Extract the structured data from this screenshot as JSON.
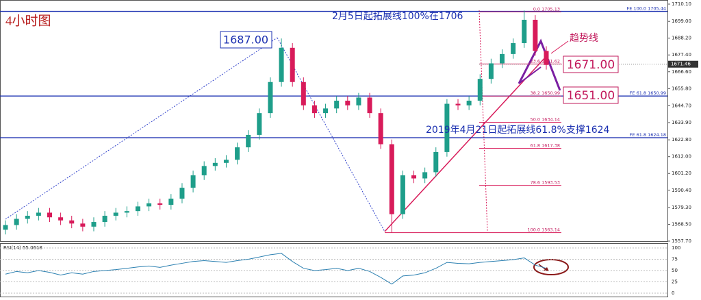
{
  "chart_data": {
    "type": "candlestick",
    "title": "4小时图",
    "annotations": [
      "2月5日起拓展线100%在1706",
      "2019年4月21日起拓展线61.8%支撑1624",
      "1687.00",
      "1671.00",
      "1651.00",
      "趋势线"
    ],
    "current_price": {
      "value": 1671.46,
      "label": "1671.46"
    },
    "up_color": "#1e9e8a",
    "down_color": "#d81b5a",
    "open": [
      1565,
      1568,
      1572,
      1574,
      1576,
      1573,
      1571,
      1569,
      1567,
      1570,
      1574,
      1576,
      1577,
      1580,
      1582,
      1581,
      1585,
      1592,
      1600,
      1606,
      1608,
      1610,
      1618,
      1626,
      1640,
      1660,
      1682,
      1660,
      1645,
      1640,
      1643,
      1648,
      1645,
      1650,
      1640,
      1620,
      1575,
      1600,
      1598,
      1602,
      1615,
      1646,
      1645,
      1648,
      1662,
      1672,
      1678,
      1685,
      1700,
      1680
    ],
    "high": [
      1571,
      1575,
      1577,
      1579,
      1579,
      1576,
      1574,
      1572,
      1573,
      1577,
      1579,
      1580,
      1583,
      1585,
      1585,
      1588,
      1595,
      1603,
      1609,
      1611,
      1613,
      1621,
      1629,
      1643,
      1663,
      1688,
      1685,
      1663,
      1648,
      1646,
      1651,
      1651,
      1653,
      1653,
      1643,
      1623,
      1603,
      1603,
      1605,
      1618,
      1649,
      1649,
      1651,
      1665,
      1675,
      1681,
      1688,
      1706,
      1703,
      1683
    ],
    "low": [
      1562,
      1565,
      1569,
      1571,
      1570,
      1568,
      1566,
      1564,
      1564,
      1567,
      1571,
      1573,
      1574,
      1577,
      1578,
      1578,
      1582,
      1589,
      1597,
      1603,
      1605,
      1607,
      1615,
      1623,
      1637,
      1657,
      1657,
      1642,
      1637,
      1637,
      1640,
      1642,
      1642,
      1637,
      1617,
      1563,
      1572,
      1595,
      1595,
      1599,
      1612,
      1642,
      1642,
      1645,
      1659,
      1669,
      1675,
      1682,
      1677,
      1668
    ],
    "close": [
      1568,
      1572,
      1574,
      1576,
      1573,
      1571,
      1569,
      1567,
      1570,
      1574,
      1576,
      1577,
      1580,
      1582,
      1581,
      1585,
      1592,
      1600,
      1606,
      1608,
      1610,
      1618,
      1626,
      1640,
      1660,
      1682,
      1660,
      1645,
      1640,
      1643,
      1648,
      1645,
      1650,
      1640,
      1620,
      1575,
      1600,
      1598,
      1602,
      1615,
      1646,
      1645,
      1648,
      1662,
      1672,
      1678,
      1685,
      1700,
      1680,
      1671
    ],
    "ylim": [
      1557.7,
      1710.1
    ],
    "yticks": [
      {
        "value": 1710.1,
        "label": "1710.10"
      },
      {
        "value": 1699,
        "label": "1699.00"
      },
      {
        "value": 1688.2,
        "label": "1688.20"
      },
      {
        "value": 1677.4,
        "label": "1677.40"
      },
      {
        "value": 1666.6,
        "label": "1666.60"
      },
      {
        "value": 1655.8,
        "label": "1655.80"
      },
      {
        "value": 1644.7,
        "label": "1644.70"
      },
      {
        "value": 1633.9,
        "label": "1633.90"
      },
      {
        "value": 1622.8,
        "label": "1622.80"
      },
      {
        "value": 1612,
        "label": "1612.00"
      },
      {
        "value": 1601.2,
        "label": "1601.20"
      },
      {
        "value": 1590.4,
        "label": "1590.40"
      },
      {
        "value": 1579.3,
        "label": "1579.30"
      },
      {
        "value": 1568.5,
        "label": "1568.50"
      },
      {
        "value": 1557.7,
        "label": "1557.70"
      }
    ],
    "fe_levels": [
      {
        "value": 1705.44,
        "label": "FE 100.0  1705.44"
      },
      {
        "value": 1650.99,
        "label": "FE 61.8  1650.99"
      },
      {
        "value": 1624.18,
        "label": "FE 61.8  1624.18"
      }
    ],
    "fib_levels": [
      {
        "value": 1705.13,
        "label": "0.0  1705.13"
      },
      {
        "value": 1671.62,
        "label": "23.6  1671.62"
      },
      {
        "value": 1650.99,
        "label": "38.2  1650.99"
      },
      {
        "value": 1634.14,
        "label": "50.0  1634.14"
      },
      {
        "value": 1617.38,
        "label": "61.8  1617.38"
      },
      {
        "value": 1593.53,
        "label": "78.6  1593.53"
      },
      {
        "value": 1563.14,
        "label": "100.0  1563.14"
      }
    ],
    "rsi": {
      "label": "RSI(14) 55.0618",
      "values": [
        42,
        48,
        45,
        50,
        46,
        40,
        45,
        42,
        48,
        50,
        52,
        55,
        58,
        60,
        57,
        62,
        66,
        70,
        72,
        70,
        68,
        72,
        75,
        80,
        85,
        88,
        70,
        55,
        50,
        52,
        55,
        50,
        55,
        48,
        35,
        20,
        38,
        40,
        45,
        55,
        68,
        66,
        65,
        68,
        70,
        72,
        74,
        78,
        62,
        55
      ],
      "ylim": [
        0,
        100
      ],
      "yticks": [
        0,
        25,
        50,
        75,
        100
      ],
      "color": "#2a7fb0"
    }
  }
}
